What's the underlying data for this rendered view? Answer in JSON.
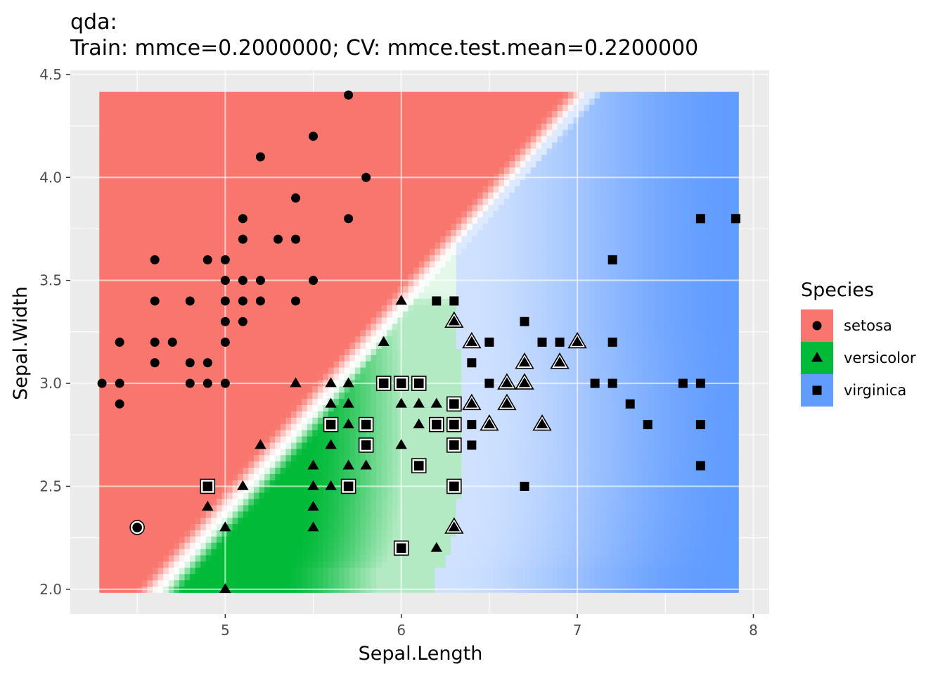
{
  "chart_data": {
    "type": "scatter",
    "title": "qda:",
    "subtitle": "Train: mmce=0.2000000; CV: mmce.test.mean=0.2200000",
    "xlabel": "Sepal.Length",
    "ylabel": "Sepal.Width",
    "xlim": [
      4.12,
      8.09
    ],
    "ylim": [
      1.88,
      4.52
    ],
    "x_ticks": [
      5,
      6,
      7,
      8
    ],
    "y_ticks": [
      2.0,
      2.5,
      3.0,
      3.5,
      4.0,
      4.5
    ],
    "x_tick_labels": [
      "5",
      "6",
      "7",
      "8"
    ],
    "y_tick_labels": [
      "2.0",
      "2.5",
      "3.0",
      "3.5",
      "4.0",
      "4.5"
    ],
    "grid": true,
    "legend": {
      "title": "Species",
      "position": "right",
      "entries": [
        {
          "label": "setosa",
          "color": "#F8766D",
          "shape": "circle"
        },
        {
          "label": "versicolor",
          "color": "#00BA38",
          "shape": "triangle"
        },
        {
          "label": "virginica",
          "color": "#619CFF",
          "shape": "square"
        }
      ]
    },
    "background_region": {
      "x": [
        4.3,
        7.9
      ],
      "y": [
        2.0,
        4.4
      ]
    },
    "series": [
      {
        "name": "setosa",
        "shape": "circle",
        "points": [
          [
            4.3,
            3.0
          ],
          [
            4.4,
            3.0
          ],
          [
            4.4,
            3.2
          ],
          [
            4.4,
            2.9
          ],
          [
            4.5,
            2.3
          ],
          [
            4.6,
            3.6
          ],
          [
            4.6,
            3.4
          ],
          [
            4.6,
            3.2
          ],
          [
            4.6,
            3.1
          ],
          [
            4.7,
            3.2
          ],
          [
            4.8,
            3.4
          ],
          [
            4.8,
            3.1
          ],
          [
            4.8,
            3.0
          ],
          [
            4.9,
            3.6
          ],
          [
            4.9,
            3.1
          ],
          [
            4.9,
            3.0
          ],
          [
            5.0,
            3.6
          ],
          [
            5.0,
            3.5
          ],
          [
            5.0,
            3.4
          ],
          [
            5.0,
            3.3
          ],
          [
            5.0,
            3.2
          ],
          [
            5.0,
            3.0
          ],
          [
            5.1,
            3.8
          ],
          [
            5.1,
            3.7
          ],
          [
            5.1,
            3.5
          ],
          [
            5.1,
            3.4
          ],
          [
            5.1,
            3.3
          ],
          [
            5.2,
            4.1
          ],
          [
            5.2,
            3.5
          ],
          [
            5.2,
            3.4
          ],
          [
            5.3,
            3.7
          ],
          [
            5.4,
            3.9
          ],
          [
            5.4,
            3.7
          ],
          [
            5.4,
            3.4
          ],
          [
            5.5,
            4.2
          ],
          [
            5.5,
            3.5
          ],
          [
            5.7,
            4.4
          ],
          [
            5.7,
            3.8
          ],
          [
            5.8,
            4.0
          ]
        ],
        "misclassified": [
          [
            4.5,
            2.3
          ]
        ]
      },
      {
        "name": "versicolor",
        "shape": "triangle",
        "points": [
          [
            5.0,
            2.0
          ],
          [
            5.0,
            2.3
          ],
          [
            4.9,
            2.4
          ],
          [
            5.1,
            2.5
          ],
          [
            5.2,
            2.7
          ],
          [
            5.4,
            3.0
          ],
          [
            5.5,
            2.6
          ],
          [
            5.5,
            2.5
          ],
          [
            5.5,
            2.4
          ],
          [
            5.5,
            2.3
          ],
          [
            5.6,
            3.0
          ],
          [
            5.6,
            2.9
          ],
          [
            5.6,
            2.7
          ],
          [
            5.6,
            2.5
          ],
          [
            5.7,
            3.0
          ],
          [
            5.7,
            2.9
          ],
          [
            5.7,
            2.8
          ],
          [
            5.7,
            2.6
          ],
          [
            5.8,
            2.6
          ],
          [
            5.9,
            3.2
          ],
          [
            6.0,
            3.4
          ],
          [
            6.0,
            2.9
          ],
          [
            6.0,
            2.7
          ],
          [
            6.1,
            2.9
          ],
          [
            6.1,
            2.8
          ],
          [
            6.2,
            2.9
          ],
          [
            6.2,
            2.2
          ],
          [
            6.3,
            3.3
          ],
          [
            6.3,
            2.3
          ],
          [
            6.4,
            3.2
          ],
          [
            6.4,
            2.9
          ],
          [
            6.5,
            2.8
          ],
          [
            6.6,
            3.0
          ],
          [
            6.6,
            2.9
          ],
          [
            6.7,
            3.1
          ],
          [
            6.7,
            3.0
          ],
          [
            6.8,
            2.8
          ],
          [
            6.9,
            3.1
          ],
          [
            7.0,
            3.2
          ]
        ],
        "misclassified": [
          [
            6.3,
            3.3
          ],
          [
            6.3,
            2.3
          ],
          [
            6.4,
            3.2
          ],
          [
            6.4,
            2.9
          ],
          [
            6.5,
            2.8
          ],
          [
            6.6,
            3.0
          ],
          [
            6.6,
            2.9
          ],
          [
            6.7,
            3.1
          ],
          [
            6.7,
            3.0
          ],
          [
            6.8,
            2.8
          ],
          [
            6.9,
            3.1
          ],
          [
            7.0,
            3.2
          ]
        ]
      },
      {
        "name": "virginica",
        "shape": "square",
        "points": [
          [
            4.9,
            2.5
          ],
          [
            5.6,
            2.8
          ],
          [
            5.7,
            2.5
          ],
          [
            5.8,
            2.8
          ],
          [
            5.8,
            2.7
          ],
          [
            5.9,
            3.0
          ],
          [
            6.0,
            3.0
          ],
          [
            6.0,
            2.2
          ],
          [
            6.1,
            3.0
          ],
          [
            6.1,
            2.6
          ],
          [
            6.2,
            3.4
          ],
          [
            6.2,
            2.8
          ],
          [
            6.3,
            3.4
          ],
          [
            6.3,
            2.9
          ],
          [
            6.3,
            2.8
          ],
          [
            6.3,
            2.7
          ],
          [
            6.3,
            2.5
          ],
          [
            6.4,
            3.1
          ],
          [
            6.4,
            2.8
          ],
          [
            6.4,
            2.7
          ],
          [
            6.5,
            3.2
          ],
          [
            6.5,
            3.0
          ],
          [
            6.7,
            3.3
          ],
          [
            6.7,
            2.5
          ],
          [
            6.8,
            3.2
          ],
          [
            6.9,
            3.2
          ],
          [
            7.1,
            3.0
          ],
          [
            7.2,
            3.6
          ],
          [
            7.2,
            3.2
          ],
          [
            7.2,
            3.0
          ],
          [
            7.3,
            2.9
          ],
          [
            7.4,
            2.8
          ],
          [
            7.6,
            3.0
          ],
          [
            7.7,
            3.8
          ],
          [
            7.7,
            3.0
          ],
          [
            7.7,
            2.8
          ],
          [
            7.7,
            2.6
          ],
          [
            7.9,
            3.8
          ]
        ],
        "misclassified": [
          [
            4.9,
            2.5
          ],
          [
            5.6,
            2.8
          ],
          [
            5.7,
            2.5
          ],
          [
            5.8,
            2.8
          ],
          [
            5.8,
            2.7
          ],
          [
            5.9,
            3.0
          ],
          [
            6.0,
            3.0
          ],
          [
            6.0,
            2.2
          ],
          [
            6.1,
            3.0
          ],
          [
            6.1,
            2.6
          ],
          [
            6.2,
            2.8
          ],
          [
            6.3,
            2.9
          ],
          [
            6.3,
            2.8
          ],
          [
            6.3,
            2.7
          ],
          [
            6.3,
            2.5
          ]
        ]
      }
    ]
  }
}
